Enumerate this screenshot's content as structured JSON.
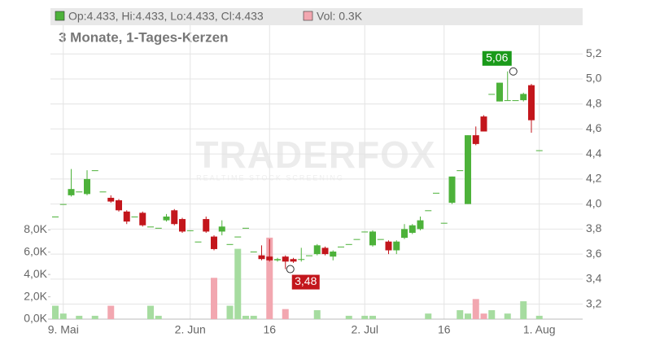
{
  "chart_data": {
    "type": "candlestick",
    "header": {
      "ohlc": "Op:4.433, Hi:4.433, Lo:4.433, Cl:4.433",
      "volume": "Vol: 0.3K"
    },
    "subtitle": "3 Monate, 1-Tages-Kerzen",
    "watermark": {
      "brand": "TRADERFOX",
      "tagline": "REALTIME STOCK SCREENING"
    },
    "categories": [
      null,
      "9. Mai",
      null,
      null,
      null,
      null,
      null,
      null,
      null,
      null,
      null,
      null,
      null,
      null,
      null,
      null,
      null,
      "2. Jun",
      null,
      null,
      null,
      null,
      null,
      null,
      null,
      null,
      null,
      "16",
      null,
      null,
      null,
      null,
      null,
      null,
      null,
      null,
      null,
      null,
      null,
      "2. Jul",
      null,
      null,
      null,
      null,
      null,
      null,
      null,
      null,
      null,
      "16",
      null,
      null,
      null,
      null,
      null,
      null,
      null,
      null,
      null,
      null,
      null,
      "1. Aug"
    ],
    "open": [
      3.9,
      4.0,
      4.07,
      4.1,
      4.08,
      4.27,
      4.1,
      4.05,
      4.03,
      3.94,
      3.9,
      3.93,
      3.82,
      3.81,
      3.87,
      3.95,
      3.88,
      3.79,
      3.7,
      3.88,
      3.74,
      3.78,
      3.68,
      3.74,
      3.81,
      3.62,
      3.59,
      3.58,
      3.55,
      3.58,
      3.56,
      3.56,
      3.59,
      3.6,
      3.65,
      3.58,
      3.66,
      3.68,
      3.72,
      3.78,
      3.67,
      3.72,
      3.7,
      3.63,
      3.73,
      3.77,
      3.8,
      3.95,
      4.09,
      3.85,
      4.01,
      4.27,
      4.0,
      4.55,
      4.7,
      4.88,
      4.82,
      4.83,
      4.83,
      4.83,
      4.95,
      4.43
    ],
    "high": [
      3.9,
      4.0,
      4.28,
      4.1,
      4.27,
      4.27,
      4.1,
      4.07,
      4.04,
      3.95,
      3.9,
      3.94,
      3.82,
      3.81,
      3.92,
      3.96,
      3.89,
      3.79,
      3.7,
      3.9,
      3.75,
      3.87,
      3.68,
      3.74,
      3.81,
      3.62,
      3.67,
      3.72,
      3.57,
      3.59,
      3.57,
      3.65,
      3.59,
      3.68,
      3.66,
      3.63,
      3.66,
      3.68,
      3.72,
      3.78,
      3.79,
      3.72,
      3.71,
      3.71,
      3.84,
      3.84,
      3.9,
      3.95,
      4.09,
      3.85,
      4.22,
      4.27,
      4.55,
      4.62,
      4.71,
      4.88,
      4.97,
      5.06,
      4.83,
      4.89,
      4.96,
      4.43
    ],
    "low": [
      3.9,
      4.0,
      4.06,
      4.1,
      4.07,
      4.27,
      4.1,
      4.01,
      3.94,
      3.84,
      3.9,
      3.82,
      3.82,
      3.81,
      3.86,
      3.83,
      3.77,
      3.79,
      3.7,
      3.77,
      3.63,
      3.75,
      3.68,
      3.74,
      3.81,
      3.62,
      3.55,
      3.54,
      3.54,
      3.48,
      3.53,
      3.54,
      3.59,
      3.59,
      3.59,
      3.55,
      3.66,
      3.68,
      3.72,
      3.78,
      3.66,
      3.72,
      3.6,
      3.6,
      3.72,
      3.76,
      3.79,
      3.95,
      4.09,
      3.85,
      4.0,
      4.27,
      4.0,
      4.47,
      4.58,
      4.88,
      4.82,
      4.83,
      4.83,
      4.82,
      4.57,
      4.43
    ],
    "close": [
      3.9,
      4.0,
      4.12,
      4.1,
      4.2,
      4.27,
      4.1,
      4.02,
      3.95,
      3.86,
      3.9,
      3.83,
      3.82,
      3.81,
      3.9,
      3.84,
      3.78,
      3.79,
      3.7,
      3.78,
      3.64,
      3.82,
      3.68,
      3.74,
      3.81,
      3.62,
      3.56,
      3.55,
      3.56,
      3.54,
      3.54,
      3.56,
      3.59,
      3.67,
      3.6,
      3.62,
      3.66,
      3.68,
      3.72,
      3.78,
      3.78,
      3.72,
      3.63,
      3.7,
      3.8,
      3.83,
      3.87,
      3.95,
      4.09,
      3.85,
      4.22,
      4.27,
      4.55,
      4.48,
      4.58,
      4.88,
      4.97,
      4.83,
      4.83,
      4.88,
      4.67,
      4.43
    ],
    "volume": [
      1.2,
      0.5,
      0,
      0.3,
      0,
      0.3,
      0,
      1.2,
      0,
      0,
      0,
      0,
      1.2,
      0.3,
      0,
      0,
      0,
      0,
      0,
      0,
      3.7,
      0,
      1.2,
      6.3,
      0.3,
      0.3,
      0,
      7.3,
      0,
      0.9,
      0,
      0,
      0,
      0.8,
      0,
      0,
      0,
      0.3,
      0,
      0.3,
      0.3,
      0,
      0,
      0,
      0,
      0,
      0,
      0.5,
      0,
      0,
      0,
      0.8,
      0.5,
      1.8,
      0.5,
      0.8,
      0,
      0.5,
      0,
      1.6,
      0,
      0.3
    ],
    "high_label": "5,06",
    "low_label": "3,48",
    "up_color": "#4db23a",
    "down_color": "#c3161c",
    "up_volume_color": "#a6dca0",
    "down_volume_color": "#f2a7b0",
    "ylim": [
      3.08,
      5.4
    ],
    "yticks": [
      {
        "value": 3.2,
        "label": "3,2"
      },
      {
        "value": 3.4,
        "label": "3,4"
      },
      {
        "value": 3.6,
        "label": "3,6"
      },
      {
        "value": 3.8,
        "label": "3,8"
      },
      {
        "value": 4.0,
        "label": "4,0"
      },
      {
        "value": 4.2,
        "label": "4,2"
      },
      {
        "value": 4.4,
        "label": "4,4"
      },
      {
        "value": 4.6,
        "label": "4,6"
      },
      {
        "value": 4.8,
        "label": "4,8"
      },
      {
        "value": 5.0,
        "label": "5,0"
      },
      {
        "value": 5.2,
        "label": "5,2"
      }
    ],
    "y2lim": [
      0,
      26
    ],
    "y2ticks": [
      {
        "value": 0,
        "label": "0,0K"
      },
      {
        "value": 2,
        "label": "2,0K"
      },
      {
        "value": 4,
        "label": "4,0K"
      },
      {
        "value": 6,
        "label": "6,0K"
      },
      {
        "value": 8,
        "label": "8,0K"
      }
    ],
    "grid": true
  }
}
